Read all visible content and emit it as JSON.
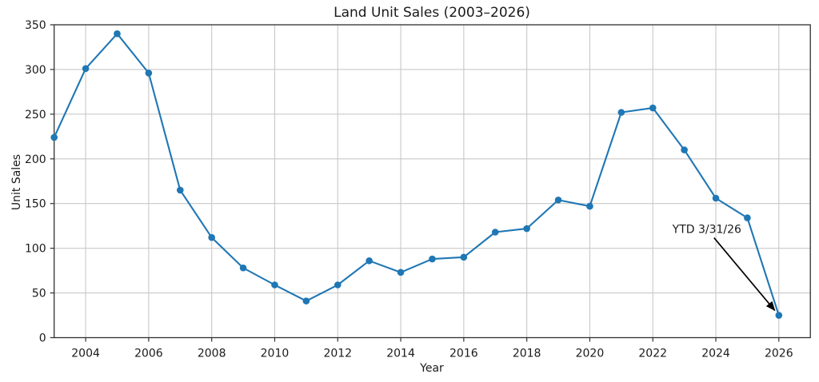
{
  "chart_data": {
    "type": "line",
    "title": "Land Unit Sales (2003–2026)",
    "xlabel": "Year",
    "ylabel": "Unit Sales",
    "x": [
      2003,
      2004,
      2005,
      2006,
      2007,
      2008,
      2009,
      2010,
      2011,
      2012,
      2013,
      2014,
      2015,
      2016,
      2017,
      2018,
      2019,
      2020,
      2021,
      2022,
      2023,
      2024,
      2025,
      2026
    ],
    "values": [
      224,
      301,
      340,
      296,
      165,
      112,
      78,
      59,
      41,
      59,
      86,
      73,
      88,
      90,
      118,
      122,
      154,
      147,
      252,
      257,
      210,
      156,
      134,
      25
    ],
    "xlim": [
      2003,
      2027
    ],
    "ylim": [
      0,
      350
    ],
    "xticks": [
      2004,
      2006,
      2008,
      2010,
      2012,
      2014,
      2016,
      2018,
      2020,
      2022,
      2024,
      2026
    ],
    "yticks": [
      0,
      50,
      100,
      150,
      200,
      250,
      300,
      350
    ],
    "grid": true,
    "legend_position": "none",
    "marker": "circle",
    "annotation": {
      "label": "YTD 3/31/26",
      "target_year": 2026,
      "target_value": 25
    }
  },
  "colors": {
    "line": "#1f77b4",
    "marker": "#1f77b4",
    "grid": "#c8c8c8",
    "spine": "#303030",
    "tick": "#303030",
    "text": "#1a1a1a",
    "annotation_arrow": "#000000",
    "background": "#ffffff"
  }
}
